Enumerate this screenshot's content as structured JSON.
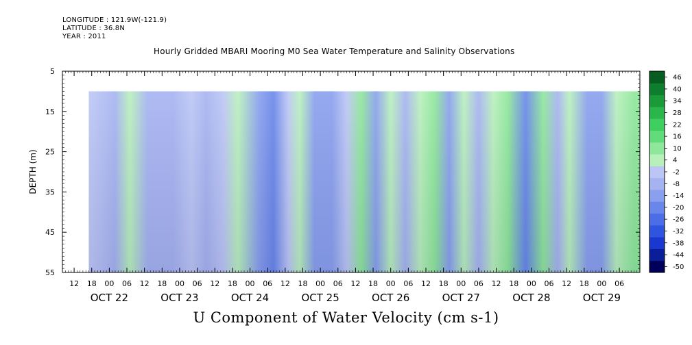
{
  "header": {
    "longitude": "LONGITUDE : 121.9W(-121.9)",
    "latitude": "LATITUDE : 36.8N",
    "year": "YEAR : 2011"
  },
  "chart_data": {
    "type": "heatmap",
    "title": "Hourly Gridded MBARI Mooring M0 Sea Water Temperature and Salinity Observations",
    "xlabel": "U Component of Water Velocity (cm s-1)",
    "ylabel": "DEPTH (m)",
    "ylim": [
      55,
      5
    ],
    "yticks": [
      5,
      15,
      25,
      35,
      45,
      55
    ],
    "data_depth_range": [
      10,
      55
    ],
    "xlim": [
      "2011-10-21T08:00",
      "2011-10-29T13:00"
    ],
    "data_time_range": [
      "2011-10-21T17:00",
      "2011-10-29T13:00"
    ],
    "hour_ticks": [
      "12",
      "18",
      "00",
      "06",
      "12",
      "18",
      "00",
      "06",
      "12",
      "18",
      "00",
      "06",
      "12",
      "18",
      "00",
      "06",
      "12",
      "18",
      "00",
      "06",
      "12",
      "18",
      "00",
      "06",
      "12",
      "18",
      "00",
      "06",
      "12",
      "18",
      "00",
      "06"
    ],
    "date_labels": [
      "OCT 22",
      "OCT 23",
      "OCT 24",
      "OCT 25",
      "OCT 26",
      "OCT 27",
      "OCT 28",
      "OCT 29"
    ],
    "colorbar": {
      "levels": [
        -50,
        -44,
        -38,
        -32,
        -26,
        -20,
        -14,
        -8,
        -2,
        4,
        10,
        16,
        22,
        28,
        34,
        40,
        46
      ],
      "labels": [
        "46",
        "40",
        "34",
        "28",
        "22",
        "16",
        "10",
        "4",
        "-2",
        "-8",
        "-14",
        "-20",
        "-26",
        "-32",
        "-38",
        "-44",
        "-50"
      ]
    },
    "column_profile_u_cm_s": [
      {
        "time": "2011-10-21T18:00",
        "u": 2
      },
      {
        "time": "2011-10-22T02:00",
        "u": -4
      },
      {
        "time": "2011-10-22T07:00",
        "u": 9
      },
      {
        "time": "2011-10-22T13:00",
        "u": -5
      },
      {
        "time": "2011-10-22T22:00",
        "u": -7
      },
      {
        "time": "2011-10-23T04:00",
        "u": 3
      },
      {
        "time": "2011-10-23T09:00",
        "u": -6
      },
      {
        "time": "2011-10-23T15:00",
        "u": 4
      },
      {
        "time": "2011-10-23T20:00",
        "u": 8
      },
      {
        "time": "2011-10-24T03:00",
        "u": -10
      },
      {
        "time": "2011-10-24T08:00",
        "u": -14
      },
      {
        "time": "2011-10-24T13:00",
        "u": 2
      },
      {
        "time": "2011-10-24T17:00",
        "u": 9
      },
      {
        "time": "2011-10-24T22:00",
        "u": -8
      },
      {
        "time": "2011-10-25T04:00",
        "u": -11
      },
      {
        "time": "2011-10-25T09:00",
        "u": 3
      },
      {
        "time": "2011-10-25T14:00",
        "u": 11
      },
      {
        "time": "2011-10-25T19:00",
        "u": -8
      },
      {
        "time": "2011-10-26T00:00",
        "u": 6
      },
      {
        "time": "2011-10-26T05:00",
        "u": -4
      },
      {
        "time": "2011-10-26T10:00",
        "u": 9
      },
      {
        "time": "2011-10-26T15:00",
        "u": 12
      },
      {
        "time": "2011-10-26T20:00",
        "u": -12
      },
      {
        "time": "2011-10-27T01:00",
        "u": 10
      },
      {
        "time": "2011-10-27T06:00",
        "u": -6
      },
      {
        "time": "2011-10-27T11:00",
        "u": 7
      },
      {
        "time": "2011-10-27T16:00",
        "u": 12
      },
      {
        "time": "2011-10-27T22:00",
        "u": -14
      },
      {
        "time": "2011-10-28T04:00",
        "u": 12
      },
      {
        "time": "2011-10-28T09:00",
        "u": -6
      },
      {
        "time": "2011-10-28T13:00",
        "u": 6
      },
      {
        "time": "2011-10-28T19:00",
        "u": -12
      },
      {
        "time": "2011-10-29T00:00",
        "u": -8
      },
      {
        "time": "2011-10-29T05:00",
        "u": 9
      },
      {
        "time": "2011-10-29T11:00",
        "u": 12
      }
    ]
  }
}
